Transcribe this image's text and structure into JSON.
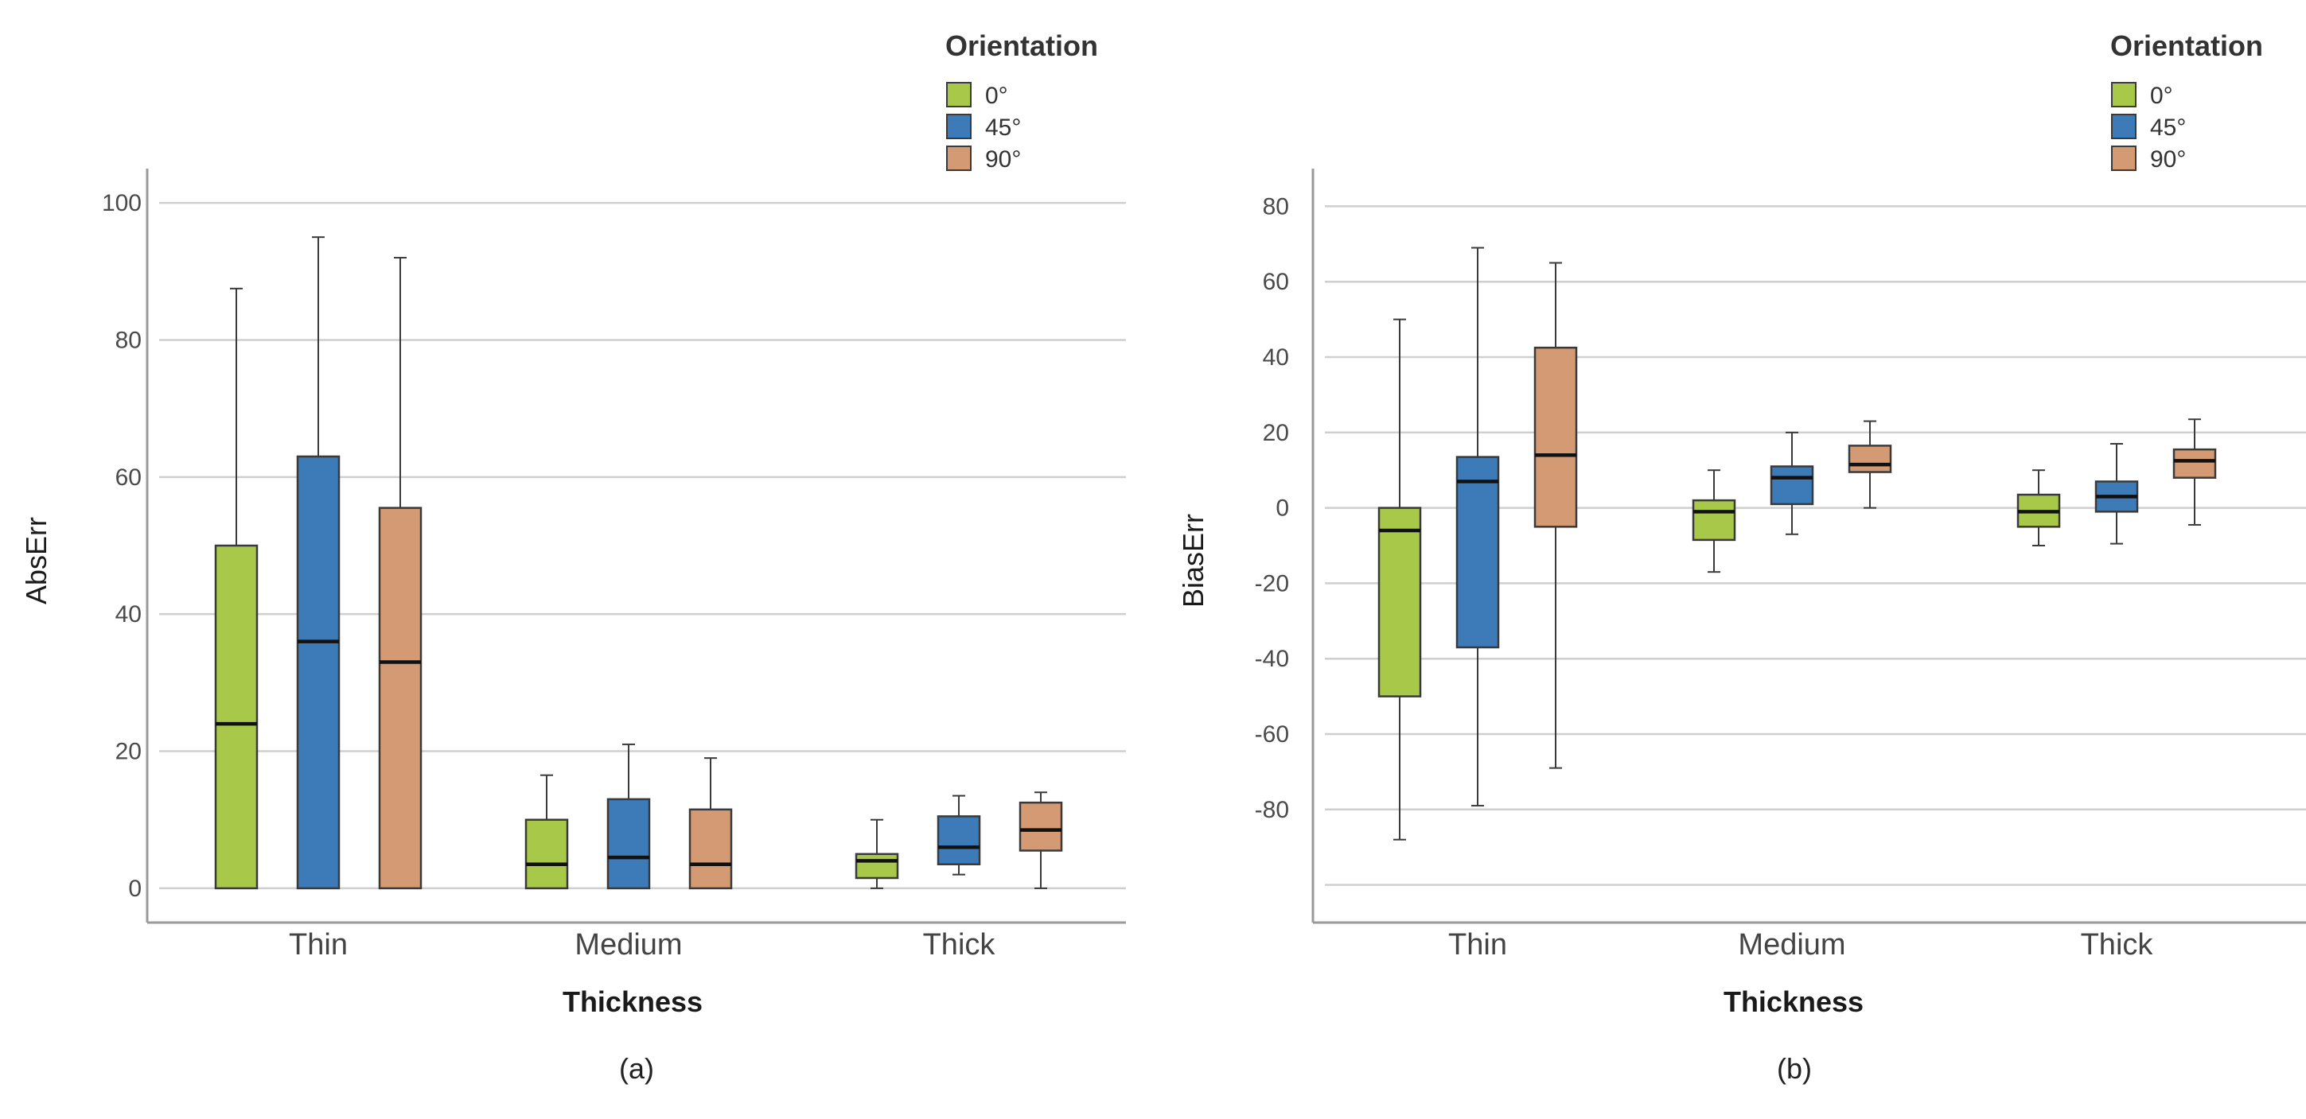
{
  "colors": {
    "0°": "#a8c84a",
    "45°": "#3d7ab8",
    "90°": "#d49a74",
    "grid": "#cfcfcf",
    "axis": "#9a9a9a",
    "edge": "#3a3a3a"
  },
  "chart_data": [
    {
      "type": "box",
      "caption": "(a)",
      "xlabel": "Thickness",
      "ylabel": "AbsErr",
      "ylim": [
        -5,
        105
      ],
      "yticks": [
        0,
        20,
        40,
        60,
        80,
        100
      ],
      "gridlines": [
        0,
        20,
        40,
        60,
        80,
        100
      ],
      "categories": [
        "Thin",
        "Medium",
        "Thick"
      ],
      "legend": {
        "title": "Orientation",
        "entries": [
          "0°",
          "45°",
          "90°"
        ],
        "placement": "top-right"
      },
      "series": [
        {
          "name": "0°",
          "boxes": [
            {
              "min": 0,
              "q1": 0,
              "median": 24,
              "q3": 50,
              "max": 87.5
            },
            {
              "min": 0,
              "q1": 0,
              "median": 3.5,
              "q3": 10,
              "max": 16.5
            },
            {
              "min": 0,
              "q1": 1.5,
              "median": 4,
              "q3": 5,
              "max": 10
            }
          ]
        },
        {
          "name": "45°",
          "boxes": [
            {
              "min": 0,
              "q1": 0,
              "median": 36,
              "q3": 63,
              "max": 95
            },
            {
              "min": 0,
              "q1": 0,
              "median": 4.5,
              "q3": 13,
              "max": 21
            },
            {
              "min": 2,
              "q1": 3.5,
              "median": 6,
              "q3": 10.5,
              "max": 13.5
            }
          ]
        },
        {
          "name": "90°",
          "boxes": [
            {
              "min": 0,
              "q1": 0,
              "median": 33,
              "q3": 55.5,
              "max": 92
            },
            {
              "min": 0,
              "q1": 0,
              "median": 3.5,
              "q3": 11.5,
              "max": 19
            },
            {
              "min": 0,
              "q1": 5.5,
              "median": 8.5,
              "q3": 12.5,
              "max": 14
            }
          ]
        }
      ]
    },
    {
      "type": "box",
      "caption": "(b)",
      "xlabel": "Thickness",
      "ylabel": "BiasErr",
      "ylim": [
        -110,
        90
      ],
      "yticks": [
        80,
        60,
        40,
        20,
        0,
        -20,
        -40,
        -60,
        -80
      ],
      "gridlines": [
        80,
        60,
        40,
        20,
        0,
        -20,
        -40,
        -60,
        -80,
        -100
      ],
      "categories": [
        "Thin",
        "Medium",
        "Thick"
      ],
      "legend": {
        "title": "Orientation",
        "entries": [
          "0°",
          "45°",
          "90°"
        ],
        "placement": "top-right"
      },
      "series": [
        {
          "name": "0°",
          "boxes": [
            {
              "min": -88,
              "q1": -50,
              "median": -6,
              "q3": 0,
              "max": 50
            },
            {
              "min": -17,
              "q1": -8.5,
              "median": -1,
              "q3": 2,
              "max": 10
            },
            {
              "min": -10,
              "q1": -5,
              "median": -1,
              "q3": 3.5,
              "max": 10
            }
          ]
        },
        {
          "name": "45°",
          "boxes": [
            {
              "min": -79,
              "q1": -37,
              "median": 7,
              "q3": 13.5,
              "max": 69
            },
            {
              "min": -7,
              "q1": 1,
              "median": 8,
              "q3": 11,
              "max": 20
            },
            {
              "min": -9.5,
              "q1": -1,
              "median": 3,
              "q3": 7,
              "max": 17
            }
          ]
        },
        {
          "name": "90°",
          "boxes": [
            {
              "min": -69,
              "q1": -5,
              "median": 14,
              "q3": 42.5,
              "max": 65
            },
            {
              "min": 0,
              "q1": 9.5,
              "median": 11.5,
              "q3": 16.5,
              "max": 23
            },
            {
              "min": -4.5,
              "q1": 8,
              "median": 12.5,
              "q3": 15.5,
              "max": 23.5
            }
          ]
        }
      ]
    }
  ]
}
